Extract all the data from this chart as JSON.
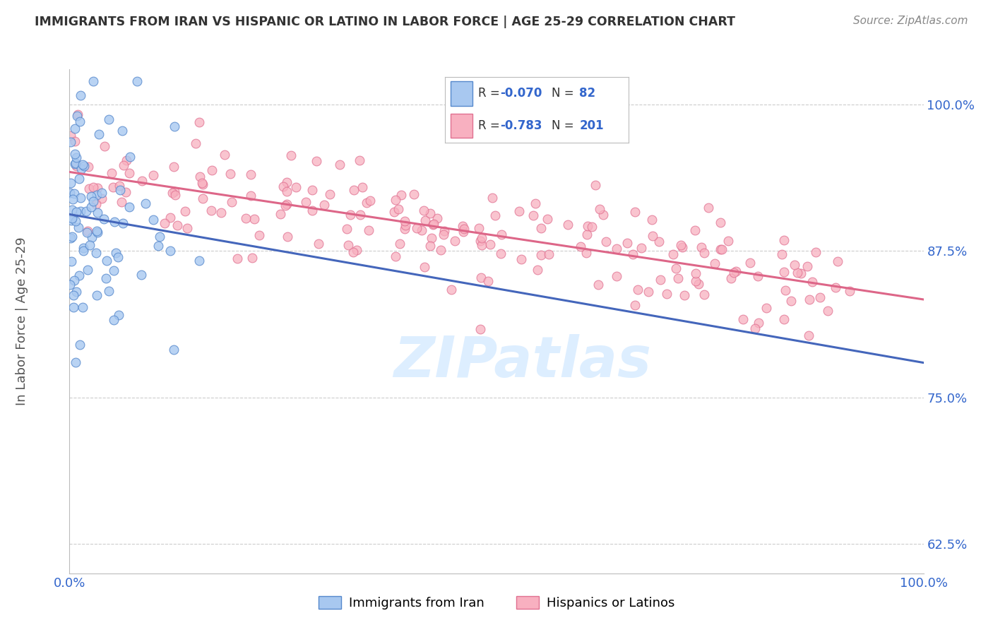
{
  "title": "IMMIGRANTS FROM IRAN VS HISPANIC OR LATINO IN LABOR FORCE | AGE 25-29 CORRELATION CHART",
  "source": "Source: ZipAtlas.com",
  "ylabel": "In Labor Force | Age 25-29",
  "xlim": [
    0.0,
    100.0
  ],
  "ylim": [
    60.0,
    103.0
  ],
  "yticks": [
    62.5,
    75.0,
    87.5,
    100.0
  ],
  "ytick_labels": [
    "62.5%",
    "75.0%",
    "87.5%",
    "100.0%"
  ],
  "xtick_vals": [
    0,
    100
  ],
  "xtick_labels": [
    "0.0%",
    "100.0%"
  ],
  "legend_label_1": "Immigrants from Iran",
  "legend_label_2": "Hispanics or Latinos",
  "R1": -0.07,
  "N1": 82,
  "R2": -0.783,
  "N2": 201,
  "color_blue_fill": "#a8c8f0",
  "color_blue_edge": "#5588cc",
  "color_pink_fill": "#f8b0c0",
  "color_pink_edge": "#e07090",
  "color_blue_line": "#4466bb",
  "color_pink_line": "#dd6688",
  "watermark_color": "#ddeeff",
  "grid_color": "#cccccc",
  "title_color": "#333333",
  "source_color": "#888888",
  "ylabel_color": "#555555",
  "tick_color": "#3366cc",
  "bg_color": "#ffffff",
  "seed_iran": 42,
  "seed_hisp": 7
}
